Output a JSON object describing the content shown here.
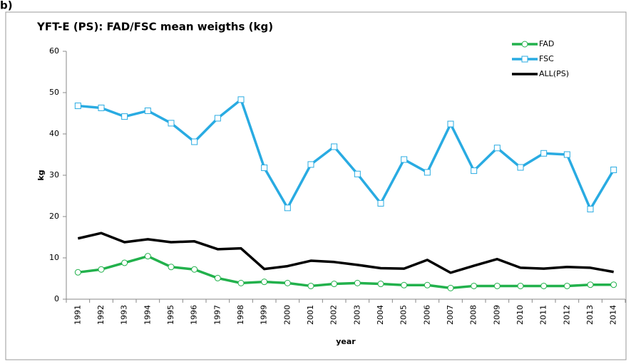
{
  "chart_data": {
    "type": "line",
    "panel_label": "b)",
    "title": "YFT-E (PS): FAD/FSC mean weigths (kg)",
    "y_label": "kg",
    "x_label": "year",
    "categories": [
      "1991",
      "1992",
      "1993",
      "1994",
      "1995",
      "1996",
      "1997",
      "1998",
      "1999",
      "2000",
      "2001",
      "2002",
      "2003",
      "2004",
      "2005",
      "2006",
      "2007",
      "2008",
      "2009",
      "2010",
      "2011",
      "2012",
      "2013",
      "2014"
    ],
    "series": [
      {
        "name": "FAD",
        "color": "#22b14c",
        "marker": "circle",
        "values": [
          6.5,
          7.2,
          8.8,
          10.4,
          7.8,
          7.2,
          5.1,
          3.9,
          4.2,
          3.9,
          3.2,
          3.7,
          3.9,
          3.7,
          3.4,
          3.4,
          2.7,
          3.2,
          3.2,
          3.2,
          3.2,
          3.2,
          3.5,
          3.5
        ]
      },
      {
        "name": "FSC",
        "color": "#29abe2",
        "marker": "square",
        "values": [
          46.8,
          46.3,
          44.2,
          45.6,
          42.6,
          38.1,
          43.8,
          48.3,
          31.8,
          22.1,
          32.6,
          36.9,
          30.3,
          23.2,
          33.8,
          30.7,
          42.4,
          31.1,
          36.6,
          31.9,
          35.3,
          35.0,
          21.8,
          31.3
        ]
      },
      {
        "name": "ALL(PS)",
        "color": "#000000",
        "marker": "none",
        "values": [
          14.7,
          16.0,
          13.8,
          14.5,
          13.8,
          14.0,
          12.1,
          12.3,
          7.3,
          8.0,
          9.3,
          9.0,
          8.3,
          7.5,
          7.4,
          9.5,
          6.4,
          8.1,
          9.7,
          7.6,
          7.4,
          7.8,
          7.6,
          6.6
        ]
      }
    ],
    "ylim": [
      0,
      60
    ],
    "yticks": [
      0,
      10,
      20,
      30,
      40,
      50,
      60
    ],
    "grid": false,
    "legend": "top-right"
  }
}
